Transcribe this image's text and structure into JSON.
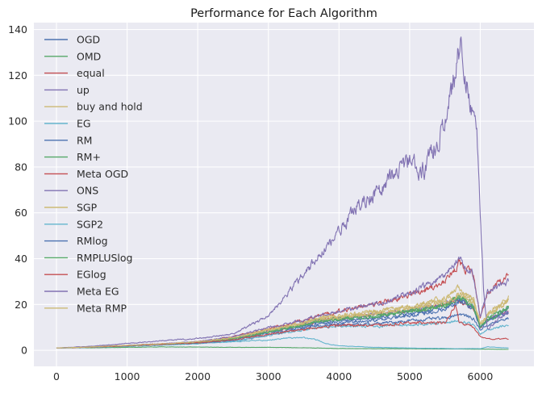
{
  "chart_data": {
    "type": "line",
    "title": "Performance for Each Algorithm",
    "xlabel": "",
    "ylabel": "",
    "xlim": [
      -320,
      6760
    ],
    "ylim": [
      -7,
      143
    ],
    "xticks": [
      0,
      1000,
      2000,
      3000,
      4000,
      5000,
      6000
    ],
    "yticks": [
      0,
      20,
      40,
      60,
      80,
      100,
      120,
      140
    ],
    "grid": true,
    "legend_position": "upper-left",
    "background_color": "#EAEAF2",
    "series": [
      {
        "name": "OGD",
        "color": "#4C72B0",
        "x": [
          0,
          500,
          1000,
          1500,
          2000,
          2500,
          3000,
          3500,
          3700,
          4000,
          4500,
          5000,
          5500,
          5700,
          5900,
          6000,
          6100,
          6400
        ],
        "y": [
          1,
          1.3,
          1.8,
          2.3,
          3,
          4,
          6.5,
          9.5,
          11,
          11,
          11.5,
          13,
          14,
          16,
          14,
          9,
          11,
          14
        ]
      },
      {
        "name": "OMD",
        "color": "#55A868",
        "x": [
          0,
          500,
          1000,
          1500,
          2000,
          2500,
          3000,
          3500,
          3700,
          4000,
          4500,
          5000,
          5500,
          5700,
          5900,
          6000,
          6100,
          6400
        ],
        "y": [
          1,
          1.1,
          1.3,
          1.5,
          1.4,
          1.3,
          1.3,
          1.1,
          1,
          0.8,
          0.7,
          0.7,
          0.6,
          0.6,
          0.5,
          0.5,
          0.5,
          0.4
        ]
      },
      {
        "name": "equal",
        "color": "#C44E52",
        "x": [
          0,
          500,
          1000,
          1500,
          2000,
          2500,
          3000,
          3500,
          3700,
          4000,
          4500,
          5000,
          5500,
          5700,
          5900,
          6000,
          6100,
          6400
        ],
        "y": [
          1,
          1.4,
          2,
          2.6,
          3.3,
          5,
          8,
          11,
          13,
          14,
          16,
          17,
          20,
          22,
          18,
          10,
          13,
          17
        ]
      },
      {
        "name": "up",
        "color": "#8172B2",
        "x": [
          0,
          500,
          1000,
          1500,
          2000,
          2500,
          3000,
          3500,
          3700,
          4000,
          4500,
          5000,
          5500,
          5700,
          5900,
          6000,
          6100,
          6400
        ],
        "y": [
          1,
          1.4,
          2,
          2.7,
          3.5,
          5,
          8.5,
          11.5,
          13,
          14,
          15.5,
          17.5,
          20,
          23,
          19,
          10,
          13,
          17
        ]
      },
      {
        "name": "buy and hold",
        "color": "#CCB974",
        "x": [
          0,
          500,
          1000,
          1500,
          2000,
          2500,
          3000,
          3500,
          3700,
          4000,
          4500,
          5000,
          5500,
          5700,
          5900,
          6000,
          6100,
          6400
        ],
        "y": [
          1,
          1.5,
          2.1,
          2.8,
          3.6,
          5.5,
          9,
          12,
          14,
          15,
          17,
          19,
          22,
          25,
          22,
          11,
          15,
          22
        ]
      },
      {
        "name": "EG",
        "color": "#64B5CD",
        "x": [
          0,
          500,
          1000,
          1500,
          2000,
          2500,
          3000,
          3300,
          3500,
          3700,
          3800,
          4000,
          4500,
          5000,
          5500,
          5700,
          5900,
          6000,
          6100,
          6400
        ],
        "y": [
          1,
          1.3,
          1.8,
          2.4,
          3,
          3.8,
          4.5,
          5.5,
          5.5,
          4.5,
          3,
          2,
          1.3,
          1,
          0.8,
          0.7,
          0.8,
          0.7,
          1.5,
          1
        ]
      },
      {
        "name": "RM",
        "color": "#4C72B0",
        "x": [
          0,
          500,
          1000,
          1500,
          2000,
          2500,
          3000,
          3500,
          3700,
          4000,
          4500,
          5000,
          5500,
          5700,
          5900,
          6000,
          6100,
          6400
        ],
        "y": [
          1,
          1.4,
          2,
          2.6,
          3.3,
          5,
          8,
          11,
          12,
          13,
          14,
          16,
          19,
          22,
          19,
          10,
          13,
          18
        ]
      },
      {
        "name": "RM+",
        "color": "#55A868",
        "x": [
          0,
          500,
          1000,
          1500,
          2000,
          2500,
          3000,
          3500,
          3700,
          4000,
          4500,
          5000,
          5500,
          5700,
          5900,
          6000,
          6100,
          6400
        ],
        "y": [
          1,
          1.4,
          2,
          2.6,
          3.3,
          5,
          8,
          11,
          13,
          14,
          15,
          17,
          20,
          24,
          20,
          10,
          14,
          19
        ]
      },
      {
        "name": "Meta OGD",
        "color": "#C44E52",
        "x": [
          0,
          500,
          1000,
          1500,
          2000,
          2500,
          3000,
          3500,
          3700,
          4000,
          4500,
          5000,
          5500,
          5700,
          5900,
          6000,
          6100,
          6400
        ],
        "y": [
          1,
          1.5,
          2.2,
          2.9,
          3.8,
          6,
          9.5,
          13,
          15,
          17,
          20,
          24,
          30,
          38,
          33,
          14,
          25,
          33
        ]
      },
      {
        "name": "ONS",
        "color": "#8172B2",
        "x": [
          0,
          500,
          1000,
          1500,
          2000,
          2500,
          3000,
          3500,
          3700,
          4000,
          4500,
          5000,
          5500,
          5700,
          5900,
          6000,
          6100,
          6400
        ],
        "y": [
          1,
          1.5,
          2.2,
          2.9,
          3.8,
          6,
          10,
          13,
          15,
          17,
          20,
          25,
          32,
          40,
          33,
          15,
          25,
          30
        ]
      },
      {
        "name": "SGP",
        "color": "#CCB974",
        "x": [
          0,
          500,
          1000,
          1500,
          2000,
          2500,
          3000,
          3500,
          3700,
          4000,
          4500,
          5000,
          5500,
          5700,
          5900,
          6000,
          6100,
          6400
        ],
        "y": [
          1,
          1.4,
          2,
          2.7,
          3.5,
          5,
          8.5,
          11.5,
          13,
          14,
          16,
          18,
          21,
          24,
          21,
          11,
          15,
          21
        ]
      },
      {
        "name": "SGP2",
        "color": "#64B5CD",
        "x": [
          0,
          500,
          1000,
          1500,
          2000,
          2500,
          3000,
          3500,
          3700,
          4000,
          4500,
          5000,
          5500,
          5700,
          5900,
          6000,
          6100,
          6400
        ],
        "y": [
          1,
          1.3,
          1.8,
          2.3,
          2.9,
          4,
          6.5,
          9,
          10,
          10.5,
          10.5,
          11,
          12,
          13,
          11,
          7,
          9,
          11
        ]
      },
      {
        "name": "RMlog",
        "color": "#4C72B0",
        "x": [
          0,
          500,
          1000,
          1500,
          2000,
          2500,
          3000,
          3500,
          3700,
          4000,
          4500,
          5000,
          5500,
          5700,
          5900,
          6000,
          6100,
          6400
        ],
        "y": [
          1,
          1.4,
          1.9,
          2.5,
          3.1,
          4.5,
          7.5,
          10,
          11.5,
          12,
          13,
          15,
          18,
          21,
          18,
          10,
          13,
          17
        ]
      },
      {
        "name": "RMPLUSlog",
        "color": "#55A868",
        "x": [
          0,
          500,
          1000,
          1500,
          2000,
          2500,
          3000,
          3500,
          3700,
          4000,
          4500,
          5000,
          5500,
          5700,
          5900,
          6000,
          6100,
          6400
        ],
        "y": [
          1,
          1.4,
          2,
          2.6,
          3.3,
          5,
          8,
          11,
          12.5,
          13.5,
          15,
          17,
          19,
          23,
          19,
          10,
          13,
          18
        ]
      },
      {
        "name": "EGlog",
        "color": "#C44E52",
        "x": [
          0,
          500,
          1000,
          1500,
          2000,
          2500,
          3000,
          3500,
          3700,
          4000,
          4500,
          5000,
          5500,
          5650,
          5700,
          5900,
          6000,
          6100,
          6400
        ],
        "y": [
          1,
          1.4,
          2,
          2.6,
          3.3,
          4.5,
          7,
          9,
          10,
          11,
          11,
          12,
          12,
          20,
          12,
          10,
          6,
          5,
          5
        ]
      },
      {
        "name": "Meta EG",
        "color": "#8172B2",
        "x": [
          0,
          500,
          1000,
          1500,
          2000,
          2500,
          3000,
          3250,
          3500,
          3750,
          4000,
          4250,
          4500,
          4750,
          5000,
          5200,
          5400,
          5550,
          5650,
          5720,
          5780,
          5850,
          5950,
          6000,
          6050,
          6100,
          6200,
          6400
        ],
        "y": [
          1,
          1.8,
          3,
          4.2,
          5.2,
          7,
          15,
          24,
          33,
          42,
          52,
          62,
          69,
          76,
          83,
          78,
          92,
          108,
          122,
          136,
          118,
          112,
          95,
          60,
          25,
          9,
          12,
          17
        ]
      },
      {
        "name": "Meta RMP",
        "color": "#CCB974",
        "x": [
          0,
          500,
          1000,
          1500,
          2000,
          2500,
          3000,
          3500,
          3700,
          4000,
          4500,
          5000,
          5500,
          5700,
          5900,
          6000,
          6100,
          6400
        ],
        "y": [
          1,
          1.5,
          2.1,
          2.8,
          3.6,
          5.5,
          9,
          12,
          14,
          15,
          17,
          19,
          23,
          27,
          23,
          12,
          16,
          23
        ]
      }
    ]
  }
}
